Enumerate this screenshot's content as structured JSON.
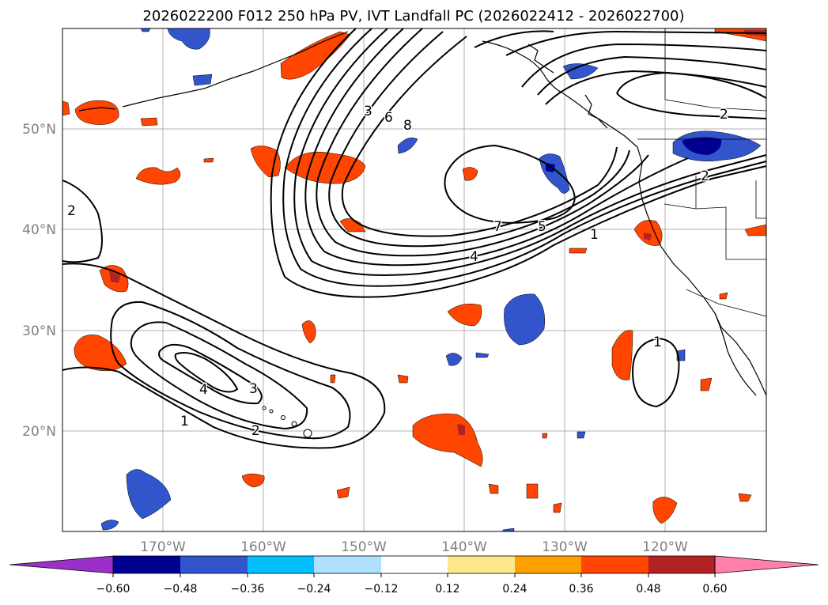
{
  "title": "2026022200 F012 250 hPa PV, IVT Landfall PC (2026022412 - 2026022700)",
  "map": {
    "lat_labels": [
      "20°N",
      "30°N",
      "40°N",
      "50°N"
    ],
    "lon_labels": [
      "170°W",
      "160°W",
      "150°W",
      "140°W",
      "130°W",
      "120°W"
    ]
  },
  "colorbar": {
    "ticks": [
      "−0.60",
      "−0.48",
      "−0.36",
      "−0.24",
      "−0.12",
      "0.12",
      "0.24",
      "0.36",
      "0.48",
      "0.60"
    ],
    "colors": [
      "#9b30c8",
      "#000090",
      "#3355cc",
      "#00bfff",
      "#b0e0ff",
      "#ffffff",
      "#ffe88a",
      "#ff9f00",
      "#ff4500",
      "#b22222",
      "#ff80aa"
    ]
  },
  "contour_labels": [
    {
      "text": "3"
    },
    {
      "text": "6"
    },
    {
      "text": "8"
    },
    {
      "text": "2"
    },
    {
      "text": "7"
    },
    {
      "text": "5"
    },
    {
      "text": "4"
    },
    {
      "text": "1"
    },
    {
      "text": "2"
    },
    {
      "text": "2"
    },
    {
      "text": "4"
    },
    {
      "text": "3"
    },
    {
      "text": "1"
    },
    {
      "text": "2"
    },
    {
      "text": "1"
    }
  ]
}
